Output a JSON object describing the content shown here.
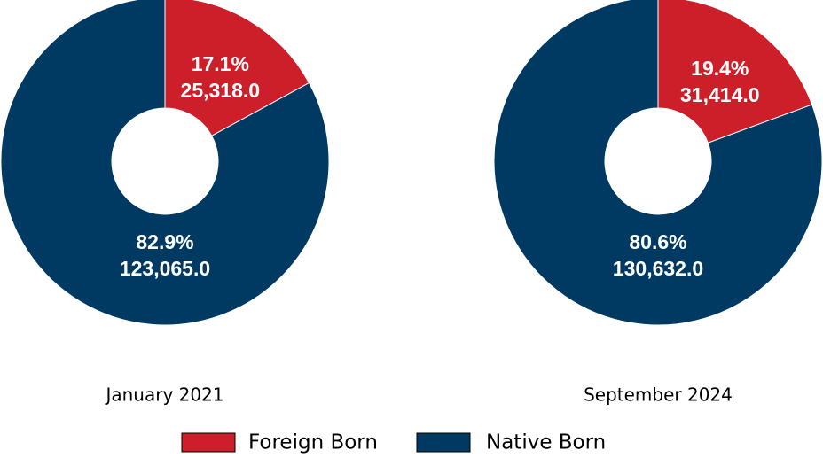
{
  "chart_data": [
    {
      "type": "donut",
      "title": "January 2021",
      "categories": [
        "Foreign Born",
        "Native Born"
      ],
      "values": [
        25318.0,
        123065.0
      ],
      "value_labels": [
        "25,318.0",
        "123,065.0"
      ],
      "percent_labels": [
        "17.1%",
        "82.9%"
      ],
      "colors": [
        "#cc1f2a",
        "#003a63"
      ]
    },
    {
      "type": "donut",
      "title": "September 2024",
      "categories": [
        "Foreign Born",
        "Native Born"
      ],
      "values": [
        31414.0,
        130632.0
      ],
      "value_labels": [
        "31,414.0",
        "130,632.0"
      ],
      "percent_labels": [
        "19.4%",
        "80.6%"
      ],
      "colors": [
        "#cc1f2a",
        "#003a63"
      ]
    }
  ]
}
